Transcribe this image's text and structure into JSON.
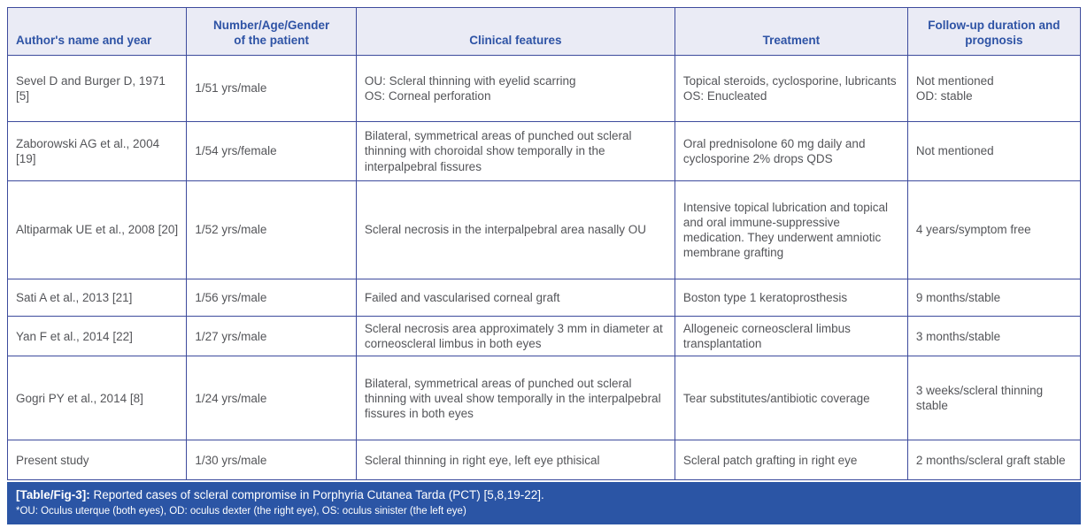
{
  "colors": {
    "header_bg": "#eaebf5",
    "header_text": "#2e53a5",
    "border": "#3d4b9d",
    "body_text": "#545559",
    "caption_bg": "#2b55a5",
    "caption_text": "#ffffff",
    "page_bg": "#ffffff"
  },
  "table": {
    "columns": [
      "Author's name and year",
      "Number/Age/Gender\nof the patient",
      "Clinical features",
      "Treatment",
      "Follow-up duration and\nprognosis"
    ],
    "rows": [
      {
        "author": "Sevel D and Burger D, 1971 [5]",
        "patient": "1/51 yrs/male",
        "clinical": "OU: Scleral thinning with eyelid scarring\nOS: Corneal perforation",
        "treatment": "Topical steroids, cyclosporine, lubricants\nOS: Enucleated",
        "followup": "Not mentioned\nOD: stable"
      },
      {
        "author": "Zaborowski AG et al., 2004 [19]",
        "patient": "1/54 yrs/female",
        "clinical": "Bilateral, symmetrical areas of punched out scleral thinning with choroidal show temporally in the interpalpebral fissures",
        "treatment": "Oral prednisolone 60 mg daily and cyclosporine 2% drops QDS",
        "followup": "Not mentioned"
      },
      {
        "author": "Altiparmak UE et al., 2008 [20]",
        "patient": "1/52 yrs/male",
        "clinical": "Scleral necrosis in the interpalpebral area nasally OU",
        "treatment": "Intensive topical lubrication and topical and oral immune-suppressive medication. They underwent amniotic membrane grafting",
        "followup": "4 years/symptom free"
      },
      {
        "author": "Sati A et al., 2013 [21]",
        "patient": "1/56 yrs/male",
        "clinical": "Failed and vascularised corneal graft",
        "treatment": "Boston type 1 keratoprosthesis",
        "followup": "9 months/stable"
      },
      {
        "author": "Yan F et al., 2014 [22]",
        "patient": "1/27 yrs/male",
        "clinical": "Scleral necrosis area approximately 3 mm in diameter at corneoscleral limbus in both eyes",
        "treatment": "Allogeneic corneoscleral limbus transplantation",
        "followup": "3 months/stable"
      },
      {
        "author": "Gogri PY et al., 2014 [8]",
        "patient": "1/24 yrs/male",
        "clinical": "Bilateral, symmetrical areas of punched out scleral thinning with uveal show temporally in the interpalpebral fissures in both eyes",
        "treatment": "Tear substitutes/antibiotic coverage",
        "followup": "3 weeks/scleral thinning stable"
      },
      {
        "author": "Present study",
        "patient": "1/30 yrs/male",
        "clinical": "Scleral thinning in right eye, left eye pthisical",
        "treatment": "Scleral patch grafting in right eye",
        "followup": "2 months/scleral graft stable"
      }
    ],
    "caption": {
      "label": "[Table/Fig-3]:",
      "text": " Reported cases of scleral compromise in Porphyria Cutanea Tarda (PCT) [5,8,19-22].",
      "footnote": "*OU: Oculus uterque (both eyes), OD: oculus dexter (the right eye), OS: oculus sinister (the left eye)"
    }
  }
}
